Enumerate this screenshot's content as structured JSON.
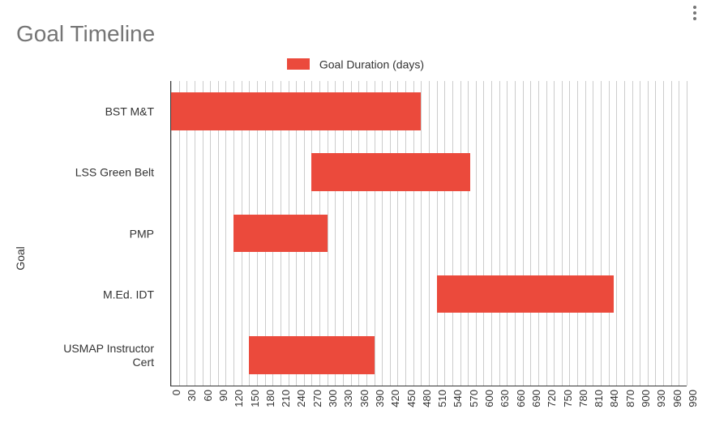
{
  "title": "Goal Timeline",
  "legend": {
    "label": "Goal Duration (days)",
    "color": "#eb4a3c"
  },
  "y_axis": {
    "title": "Goal"
  },
  "x_axis": {
    "min": 0,
    "max": 990,
    "tick_step": 30,
    "ticks": [
      0,
      30,
      60,
      90,
      120,
      150,
      180,
      210,
      240,
      270,
      300,
      330,
      360,
      390,
      420,
      450,
      480,
      510,
      540,
      570,
      600,
      630,
      660,
      690,
      720,
      750,
      780,
      810,
      840,
      870,
      900,
      930,
      960,
      990
    ]
  },
  "grid_minor_step": 15,
  "rows": [
    {
      "label": "BST M&T",
      "start": 0,
      "end": 480
    },
    {
      "label": "LSS Green Belt",
      "start": 270,
      "end": 575
    },
    {
      "label": "PMP",
      "start": 120,
      "end": 300
    },
    {
      "label": "M.Ed. IDT",
      "start": 510,
      "end": 850
    },
    {
      "label": "USMAP Instructor Cert",
      "start": 150,
      "end": 390
    }
  ],
  "style": {
    "type": "gantt",
    "background_color": "#ffffff",
    "grid_color": "#cccccc",
    "axis_color": "#333333",
    "bar_color": "#eb4a3c",
    "bar_height_ratio": 0.62,
    "title_color": "#757575",
    "title_fontsize": 28,
    "label_fontsize": 14,
    "tick_fontsize": 13,
    "font_family": "Arial"
  }
}
